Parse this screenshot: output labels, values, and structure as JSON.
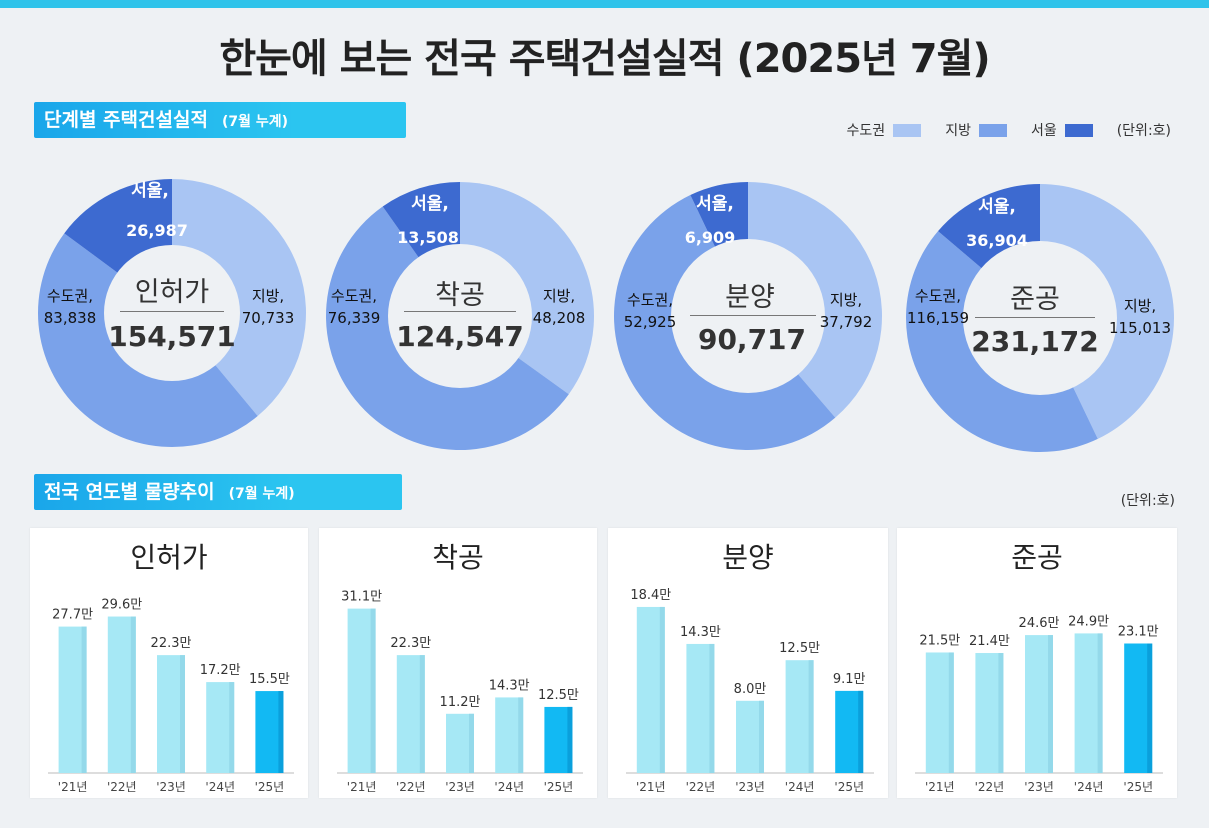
{
  "title": "한눈에 보는 전국 주택건설실적 (2025년 7월)",
  "section1": {
    "title": "단계별 주택건설실적",
    "sub": "(7월 누계)"
  },
  "section2": {
    "title": "전국 연도별 물량추이",
    "sub": "(7월 누계)"
  },
  "legend": {
    "items": [
      {
        "label": "수도권",
        "color": "#a9c5f3"
      },
      {
        "label": "지방",
        "color": "#7aa2ea"
      },
      {
        "label": "서울",
        "color": "#3d6ad0"
      }
    ],
    "unit": "(단위:호)"
  },
  "unit2": "(단위:호)",
  "chart_data": [
    {
      "type": "pie",
      "title": "인허가",
      "total_label": "154,571",
      "slices": [
        {
          "name": "지방",
          "value": 70733,
          "label": "지방,",
          "value_label": "70,733"
        },
        {
          "name": "수도권",
          "value": 83838,
          "label": "수도권,",
          "value_label": "83,838"
        },
        {
          "name": "서울",
          "value": 26987,
          "label": "서울,",
          "value_label": "26,987"
        }
      ]
    },
    {
      "type": "pie",
      "title": "착공",
      "total_label": "124,547",
      "slices": [
        {
          "name": "지방",
          "value": 48208,
          "label": "지방,",
          "value_label": "48,208"
        },
        {
          "name": "수도권",
          "value": 76339,
          "label": "수도권,",
          "value_label": "76,339"
        },
        {
          "name": "서울",
          "value": 13508,
          "label": "서울,",
          "value_label": "13,508"
        }
      ]
    },
    {
      "type": "pie",
      "title": "분양",
      "total_label": "90,717",
      "slices": [
        {
          "name": "지방",
          "value": 37792,
          "label": "지방,",
          "value_label": "37,792"
        },
        {
          "name": "수도권",
          "value": 52925,
          "label": "수도권,",
          "value_label": "52,925"
        },
        {
          "name": "서울",
          "value": 6909,
          "label": "서울,",
          "value_label": "6,909"
        }
      ]
    },
    {
      "type": "pie",
      "title": "준공",
      "total_label": "231,172",
      "slices": [
        {
          "name": "지방",
          "value": 115013,
          "label": "지방,",
          "value_label": "115,013"
        },
        {
          "name": "수도권",
          "value": 116159,
          "label": "수도권,",
          "value_label": "116,159"
        },
        {
          "name": "서울",
          "value": 36904,
          "label": "서울,",
          "value_label": "36,904"
        }
      ]
    },
    {
      "type": "bar",
      "title": "인허가",
      "categories": [
        "'21년",
        "'22년",
        "'23년",
        "'24년",
        "'25년"
      ],
      "values": [
        27.7,
        29.6,
        22.3,
        17.2,
        15.5
      ],
      "labels": [
        "27.7만",
        "29.6만",
        "22.3만",
        "17.2만",
        "15.5만"
      ],
      "ylim": [
        0,
        35
      ]
    },
    {
      "type": "bar",
      "title": "착공",
      "categories": [
        "'21년",
        "'22년",
        "'23년",
        "'24년",
        "'25년"
      ],
      "values": [
        31.1,
        22.3,
        11.2,
        14.3,
        12.5
      ],
      "labels": [
        "31.1만",
        "22.3만",
        "11.2만",
        "14.3만",
        "12.5만"
      ],
      "ylim": [
        0,
        35
      ]
    },
    {
      "type": "bar",
      "title": "분양",
      "categories": [
        "'21년",
        "'22년",
        "'23년",
        "'24년",
        "'25년"
      ],
      "values": [
        18.4,
        14.3,
        8.0,
        12.5,
        9.1
      ],
      "labels": [
        "18.4만",
        "14.3만",
        "8.0만",
        "12.5만",
        "9.1만"
      ],
      "ylim": [
        0,
        20.5
      ]
    },
    {
      "type": "bar",
      "title": "준공",
      "categories": [
        "'21년",
        "'22년",
        "'23년",
        "'24년",
        "'25년"
      ],
      "values": [
        21.5,
        21.4,
        24.6,
        24.9,
        23.1
      ],
      "labels": [
        "21.5만",
        "21.4만",
        "24.6만",
        "24.9만",
        "23.1만"
      ],
      "ylim": [
        0,
        33
      ]
    }
  ],
  "colors": {
    "metro": "#a9c5f3",
    "region": "#7aa2ea",
    "seoul": "#3d6ad0",
    "bar_past": "#a6e8f5",
    "bar_current": "#12b9f3"
  }
}
